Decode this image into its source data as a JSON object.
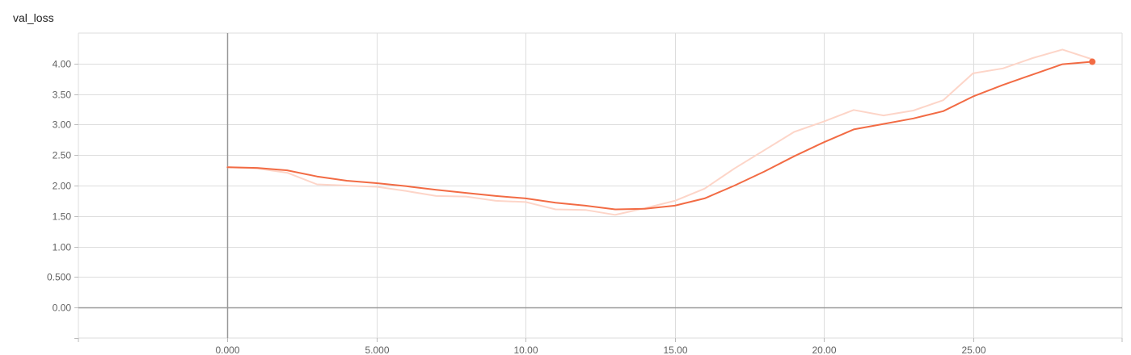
{
  "title": "val_loss",
  "chart_data": {
    "type": "line",
    "title": "val_loss",
    "xlabel": "",
    "ylabel": "",
    "xlim": [
      -5,
      30
    ],
    "ylim": [
      -0.5,
      4.5
    ],
    "grid": true,
    "x_ticks": [
      0,
      5,
      10,
      15,
      20,
      25
    ],
    "x_tick_labels": [
      "0.000",
      "5.000",
      "10.00",
      "15.00",
      "20.00",
      "25.00"
    ],
    "y_ticks": [
      0,
      0.5,
      1,
      1.5,
      2,
      2.5,
      3,
      3.5,
      4
    ],
    "y_tick_labels": [
      "0.00",
      "0.500",
      "1.00",
      "1.50",
      "2.00",
      "2.50",
      "3.00",
      "3.50",
      "4.00"
    ],
    "series": [
      {
        "role": "raw",
        "color": "#fdd5c8",
        "x": [
          0,
          1,
          2,
          3,
          4,
          5,
          6,
          7,
          8,
          9,
          10,
          11,
          12,
          13,
          14,
          15,
          16,
          17,
          18,
          19,
          20,
          21,
          22,
          23,
          24,
          25,
          26,
          27,
          28,
          29
        ],
        "values": [
          2.3,
          2.28,
          2.21,
          2.02,
          2.0,
          1.98,
          1.91,
          1.83,
          1.82,
          1.75,
          1.73,
          1.61,
          1.6,
          1.52,
          1.63,
          1.75,
          1.95,
          2.28,
          2.58,
          2.88,
          3.05,
          3.24,
          3.15,
          3.23,
          3.4,
          3.84,
          3.92,
          4.09,
          4.23,
          4.07
        ]
      },
      {
        "role": "smoothed",
        "color": "#f26b44",
        "x": [
          0,
          1,
          2,
          3,
          4,
          5,
          6,
          7,
          8,
          9,
          10,
          11,
          12,
          13,
          14,
          15,
          16,
          17,
          18,
          19,
          20,
          21,
          22,
          23,
          24,
          25,
          26,
          27,
          28,
          29
        ],
        "values": [
          2.3,
          2.29,
          2.25,
          2.15,
          2.08,
          2.04,
          1.99,
          1.93,
          1.88,
          1.83,
          1.79,
          1.72,
          1.67,
          1.61,
          1.62,
          1.67,
          1.79,
          2.0,
          2.23,
          2.48,
          2.71,
          2.92,
          3.01,
          3.1,
          3.22,
          3.46,
          3.65,
          3.82,
          3.99,
          4.03
        ]
      }
    ]
  }
}
